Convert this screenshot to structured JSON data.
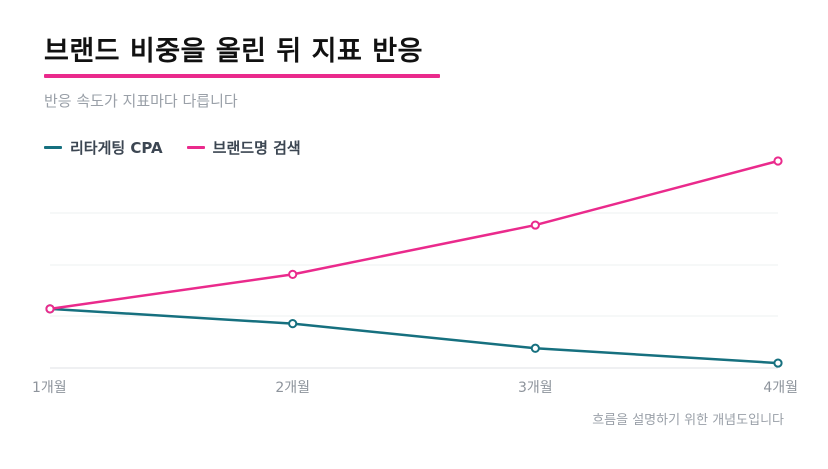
{
  "title": "브랜드 비중을 올린 뒤 지표 반응",
  "subtitle": "반응 속도가 지표마다 다릅니다",
  "footnote": "흐름을 설명하기 위한 개념도입니다",
  "legend": [
    {
      "label": "리타게팅 CPA",
      "color": "#16707f"
    },
    {
      "label": "브랜드명 검색",
      "color": "#ea2a8c"
    }
  ],
  "chart_data": {
    "type": "line",
    "title": "브랜드 비중을 올린 뒤 지표 반응",
    "subtitle": "반응 속도가 지표마다 다릅니다",
    "categories": [
      "1개월",
      "2개월",
      "3개월",
      "4개월"
    ],
    "series": [
      {
        "name": "리타게팅 CPA",
        "color": "#16707f",
        "values": [
          30,
          27,
          22,
          19
        ]
      },
      {
        "name": "브랜드명 검색",
        "color": "#ea2a8c",
        "values": [
          30,
          37,
          47,
          60
        ]
      }
    ],
    "ylim": [
      18,
      60
    ],
    "grid": true,
    "y_tick_labels": false,
    "legend_position": "top-left"
  }
}
